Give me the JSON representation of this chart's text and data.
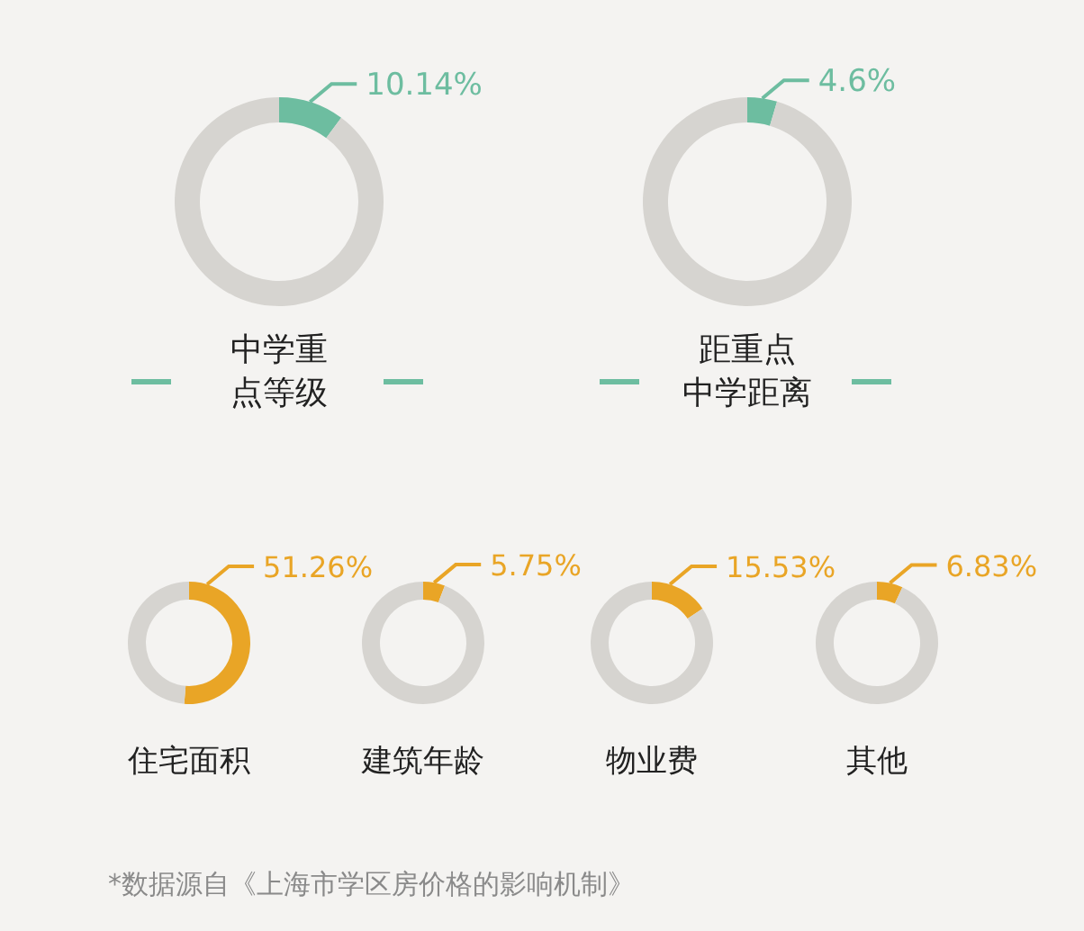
{
  "chart_data": [
    {
      "type": "donut",
      "title": "中学重点等级",
      "categories": [
        null,
        null
      ],
      "values": [
        10.14,
        89.86
      ],
      "value_labels": [
        "10.14%",
        null
      ],
      "colors": [
        "#6dbda0",
        "#d6d4d0"
      ]
    },
    {
      "type": "donut",
      "title": "距重点中学距离",
      "categories": [
        null,
        null
      ],
      "values": [
        4.6,
        95.4
      ],
      "value_labels": [
        "4.6%",
        null
      ],
      "colors": [
        "#6dbda0",
        "#d6d4d0"
      ]
    },
    {
      "type": "donut",
      "title": "住宅面积",
      "categories": [
        null,
        null
      ],
      "values": [
        51.26,
        48.74
      ],
      "value_labels": [
        "51.26%",
        null
      ],
      "colors": [
        "#e9a526",
        "#d6d4d0"
      ]
    },
    {
      "type": "donut",
      "title": "建筑年龄",
      "categories": [
        null,
        null
      ],
      "values": [
        5.75,
        94.25
      ],
      "value_labels": [
        "5.75%",
        null
      ],
      "colors": [
        "#e9a526",
        "#d6d4d0"
      ]
    },
    {
      "type": "donut",
      "title": "物业费",
      "categories": [
        null,
        null
      ],
      "values": [
        15.53,
        84.47
      ],
      "value_labels": [
        "15.53%",
        null
      ],
      "colors": [
        "#e9a526",
        "#d6d4d0"
      ]
    },
    {
      "type": "donut",
      "title": "其他",
      "categories": [
        null,
        null
      ],
      "values": [
        6.83,
        93.17
      ],
      "value_labels": [
        "6.83%",
        null
      ],
      "colors": [
        "#e9a526",
        "#d6d4d0"
      ],
      "annotations": [
        "*数据源自《上海市学区房价格的影响机制》"
      ]
    }
  ]
}
